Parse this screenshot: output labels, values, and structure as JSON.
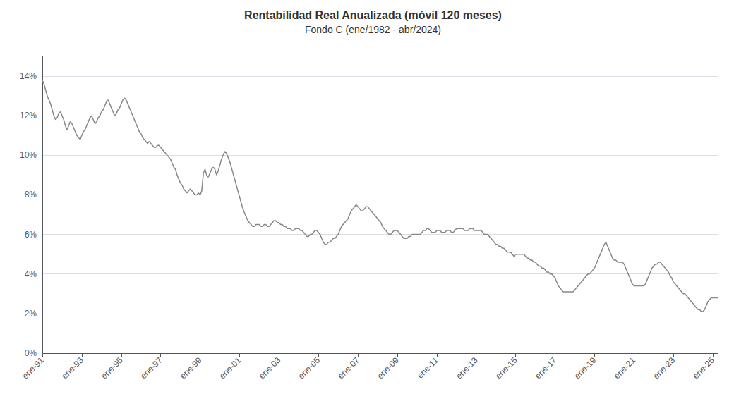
{
  "chart_data": {
    "type": "line",
    "title": "Rentabilidad Real Anualizada (móvil 120 meses)",
    "subtitle": "Fondo C (ene/1982 - abr/2024)",
    "color": "#888888",
    "grid": true,
    "xlim": [
      1991.0,
      2025.25
    ],
    "xticks": [
      {
        "value": 1991,
        "label": "ene-91"
      },
      {
        "value": 1993,
        "label": "ene-93"
      },
      {
        "value": 1995,
        "label": "ene-95"
      },
      {
        "value": 1997,
        "label": "ene-97"
      },
      {
        "value": 1999,
        "label": "ene-99"
      },
      {
        "value": 2001,
        "label": "ene-01"
      },
      {
        "value": 2003,
        "label": "ene-03"
      },
      {
        "value": 2005,
        "label": "ene-05"
      },
      {
        "value": 2007,
        "label": "ene-07"
      },
      {
        "value": 2009,
        "label": "ene-09"
      },
      {
        "value": 2011,
        "label": "ene-11"
      },
      {
        "value": 2013,
        "label": "ene-13"
      },
      {
        "value": 2015,
        "label": "ene-15"
      },
      {
        "value": 2017,
        "label": "ene-17"
      },
      {
        "value": 2019,
        "label": "ene-19"
      },
      {
        "value": 2021,
        "label": "ene-21"
      },
      {
        "value": 2023,
        "label": "ene-23"
      },
      {
        "value": 2025,
        "label": "ene-25"
      }
    ],
    "ylim": [
      0,
      0.15
    ],
    "yticks": [
      {
        "value": 0.0,
        "label": "0%"
      },
      {
        "value": 0.02,
        "label": "2%"
      },
      {
        "value": 0.04,
        "label": "4%"
      },
      {
        "value": 0.06,
        "label": "6%"
      },
      {
        "value": 0.08,
        "label": "8%"
      },
      {
        "value": 0.1,
        "label": "10%"
      },
      {
        "value": 0.12,
        "label": "12%"
      },
      {
        "value": 0.14,
        "label": "14%"
      }
    ],
    "x": [
      1991,
      1991.083333333333,
      1991.166666666667,
      1991.25,
      1991.333333333333,
      1991.416666666667,
      1991.5,
      1991.583333333333,
      1991.666666666667,
      1991.75,
      1991.833333333333,
      1991.916666666667,
      1992,
      1992.083333333333,
      1992.166666666667,
      1992.25,
      1992.333333333333,
      1992.416666666667,
      1992.5,
      1992.583333333333,
      1992.666666666667,
      1992.75,
      1992.833333333333,
      1992.916666666667,
      1993,
      1993.083333333333,
      1993.166666666667,
      1993.25,
      1993.333333333333,
      1993.416666666667,
      1993.5,
      1993.583333333333,
      1993.666666666667,
      1993.75,
      1993.833333333333,
      1993.916666666667,
      1994,
      1994.083333333333,
      1994.166666666667,
      1994.25,
      1994.333333333333,
      1994.416666666667,
      1994.5,
      1994.583333333333,
      1994.666666666667,
      1994.75,
      1994.833333333333,
      1994.916666666667,
      1995,
      1995.083333333333,
      1995.166666666667,
      1995.25,
      1995.333333333333,
      1995.416666666667,
      1995.5,
      1995.583333333333,
      1995.666666666667,
      1995.75,
      1995.833333333333,
      1995.916666666667,
      1996,
      1996.083333333333,
      1996.166666666667,
      1996.25,
      1996.333333333333,
      1996.416666666667,
      1996.5,
      1996.583333333333,
      1996.666666666667,
      1996.75,
      1996.833333333333,
      1996.916666666667,
      1997,
      1997.083333333333,
      1997.166666666667,
      1997.25,
      1997.333333333333,
      1997.416666666667,
      1997.5,
      1997.583333333333,
      1997.666666666667,
      1997.75,
      1997.833333333333,
      1997.916666666667,
      1998,
      1998.083333333333,
      1998.166666666667,
      1998.25,
      1998.333333333333,
      1998.416666666667,
      1998.5,
      1998.583333333333,
      1998.666666666667,
      1998.75,
      1998.833333333333,
      1998.916666666667,
      1999,
      1999.083333333333,
      1999.166666666667,
      1999.25,
      1999.333333333333,
      1999.416666666667,
      1999.5,
      1999.583333333333,
      1999.666666666667,
      1999.75,
      1999.833333333333,
      1999.916666666667,
      2000,
      2000.083333333333,
      2000.166666666667,
      2000.25,
      2000.333333333333,
      2000.416666666667,
      2000.5,
      2000.583333333333,
      2000.666666666667,
      2000.75,
      2000.833333333333,
      2000.916666666667,
      2001,
      2001.083333333333,
      2001.166666666667,
      2001.25,
      2001.333333333333,
      2001.416666666667,
      2001.5,
      2001.583333333333,
      2001.666666666667,
      2001.75,
      2001.833333333333,
      2001.916666666667,
      2002,
      2002.083333333333,
      2002.166666666667,
      2002.25,
      2002.333333333333,
      2002.416666666667,
      2002.5,
      2002.583333333333,
      2002.666666666667,
      2002.75,
      2002.833333333333,
      2002.916666666667,
      2003,
      2003.083333333333,
      2003.166666666667,
      2003.25,
      2003.333333333333,
      2003.416666666667,
      2003.5,
      2003.583333333333,
      2003.666666666667,
      2003.75,
      2003.833333333333,
      2003.916666666667,
      2004,
      2004.083333333333,
      2004.166666666667,
      2004.25,
      2004.333333333333,
      2004.416666666667,
      2004.5,
      2004.583333333333,
      2004.666666666667,
      2004.75,
      2004.833333333333,
      2004.916666666667,
      2005,
      2005.083333333333,
      2005.166666666667,
      2005.25,
      2005.333333333333,
      2005.416666666667,
      2005.5,
      2005.583333333333,
      2005.666666666667,
      2005.75,
      2005.833333333333,
      2005.916666666667,
      2006,
      2006.083333333333,
      2006.166666666667,
      2006.25,
      2006.333333333333,
      2006.416666666667,
      2006.5,
      2006.583333333333,
      2006.666666666667,
      2006.75,
      2006.833333333333,
      2006.916666666667,
      2007,
      2007.083333333333,
      2007.166666666667,
      2007.25,
      2007.333333333333,
      2007.416666666667,
      2007.5,
      2007.583333333333,
      2007.666666666667,
      2007.75,
      2007.833333333333,
      2007.916666666667,
      2008,
      2008.083333333333,
      2008.166666666667,
      2008.25,
      2008.333333333333,
      2008.416666666667,
      2008.5,
      2008.583333333333,
      2008.666666666667,
      2008.75,
      2008.833333333333,
      2008.916666666667,
      2009,
      2009.083333333333,
      2009.166666666667,
      2009.25,
      2009.333333333333,
      2009.416666666667,
      2009.5,
      2009.583333333333,
      2009.666666666667,
      2009.75,
      2009.833333333333,
      2009.916666666667,
      2010,
      2010.083333333333,
      2010.166666666667,
      2010.25,
      2010.333333333333,
      2010.416666666667,
      2010.5,
      2010.583333333333,
      2010.666666666667,
      2010.75,
      2010.833333333333,
      2010.916666666667,
      2011,
      2011.083333333333,
      2011.166666666667,
      2011.25,
      2011.333333333333,
      2011.416666666667,
      2011.5,
      2011.583333333333,
      2011.666666666667,
      2011.75,
      2011.833333333333,
      2011.916666666667,
      2012,
      2012.083333333333,
      2012.166666666667,
      2012.25,
      2012.333333333333,
      2012.416666666667,
      2012.5,
      2012.583333333333,
      2012.666666666667,
      2012.75,
      2012.833333333333,
      2012.916666666667,
      2013,
      2013.083333333333,
      2013.166666666667,
      2013.25,
      2013.333333333333,
      2013.416666666667,
      2013.5,
      2013.583333333333,
      2013.666666666667,
      2013.75,
      2013.833333333333,
      2013.916666666667,
      2014,
      2014.083333333333,
      2014.166666666667,
      2014.25,
      2014.333333333333,
      2014.416666666667,
      2014.5,
      2014.583333333333,
      2014.666666666667,
      2014.75,
      2014.833333333333,
      2014.916666666667,
      2015,
      2015.083333333333,
      2015.166666666667,
      2015.25,
      2015.333333333333,
      2015.416666666667,
      2015.5,
      2015.583333333333,
      2015.666666666667,
      2015.75,
      2015.833333333333,
      2015.916666666667,
      2016,
      2016.083333333333,
      2016.166666666667,
      2016.25,
      2016.333333333333,
      2016.416666666667,
      2016.5,
      2016.583333333333,
      2016.666666666667,
      2016.75,
      2016.833333333333,
      2016.916666666667,
      2017,
      2017.083333333333,
      2017.166666666667,
      2017.25,
      2017.333333333333,
      2017.416666666667,
      2017.5,
      2017.583333333333,
      2017.666666666667,
      2017.75,
      2017.833333333333,
      2017.916666666667,
      2018,
      2018.083333333333,
      2018.166666666667,
      2018.25,
      2018.333333333333,
      2018.416666666667,
      2018.5,
      2018.583333333333,
      2018.666666666667,
      2018.75,
      2018.833333333333,
      2018.916666666667,
      2019,
      2019.083333333333,
      2019.166666666667,
      2019.25,
      2019.333333333333,
      2019.416666666667,
      2019.5,
      2019.583333333333,
      2019.666666666667,
      2019.75,
      2019.833333333333,
      2019.916666666667,
      2020,
      2020.083333333333,
      2020.166666666667,
      2020.25,
      2020.333333333333,
      2020.416666666667,
      2020.5,
      2020.583333333333,
      2020.666666666667,
      2020.75,
      2020.833333333333,
      2020.916666666667,
      2021,
      2021.083333333333,
      2021.166666666667,
      2021.25,
      2021.333333333333,
      2021.416666666667,
      2021.5,
      2021.583333333333,
      2021.666666666667,
      2021.75,
      2021.833333333333,
      2021.916666666667,
      2022,
      2022.083333333333,
      2022.166666666667,
      2022.25,
      2022.333333333333,
      2022.416666666667,
      2022.5,
      2022.583333333333,
      2022.666666666667,
      2022.75,
      2022.833333333333,
      2022.916666666667,
      2023,
      2023.083333333333,
      2023.166666666667,
      2023.25,
      2023.333333333333,
      2023.416666666667,
      2023.5,
      2023.583333333333,
      2023.666666666667,
      2023.75,
      2023.833333333333,
      2023.916666666667,
      2024,
      2024.083333333333,
      2024.166666666667,
      2024.25,
      2024.333333333333,
      2024.416666666667,
      2024.5,
      2024.583333333333,
      2024.666666666667,
      2024.75,
      2024.833333333333,
      2024.916666666667,
      2025,
      2025.083333333333,
      2025.166666666667,
      2025.25
    ],
    "values": [
      0.138,
      0.136,
      0.133,
      0.13,
      0.128,
      0.126,
      0.123,
      0.12,
      0.118,
      0.119,
      0.121,
      0.122,
      0.12,
      0.118,
      0.115,
      0.113,
      0.115,
      0.117,
      0.116,
      0.114,
      0.112,
      0.11,
      0.109,
      0.108,
      0.11,
      0.112,
      0.113,
      0.115,
      0.117,
      0.119,
      0.12,
      0.118,
      0.116,
      0.117,
      0.119,
      0.12,
      0.122,
      0.123,
      0.125,
      0.127,
      0.128,
      0.126,
      0.124,
      0.122,
      0.12,
      0.121,
      0.123,
      0.124,
      0.126,
      0.128,
      0.129,
      0.128,
      0.126,
      0.124,
      0.122,
      0.12,
      0.118,
      0.116,
      0.114,
      0.112,
      0.111,
      0.109,
      0.108,
      0.107,
      0.106,
      0.107,
      0.106,
      0.105,
      0.104,
      0.104,
      0.105,
      0.105,
      0.104,
      0.103,
      0.102,
      0.101,
      0.1,
      0.099,
      0.098,
      0.096,
      0.094,
      0.093,
      0.09,
      0.088,
      0.086,
      0.085,
      0.083,
      0.082,
      0.081,
      0.082,
      0.083,
      0.082,
      0.081,
      0.08,
      0.08,
      0.081,
      0.08,
      0.082,
      0.091,
      0.093,
      0.09,
      0.089,
      0.091,
      0.093,
      0.094,
      0.093,
      0.09,
      0.092,
      0.095,
      0.098,
      0.1,
      0.102,
      0.101,
      0.099,
      0.097,
      0.094,
      0.091,
      0.088,
      0.085,
      0.082,
      0.079,
      0.076,
      0.073,
      0.071,
      0.069,
      0.067,
      0.066,
      0.065,
      0.064,
      0.064,
      0.065,
      0.065,
      0.065,
      0.064,
      0.064,
      0.065,
      0.065,
      0.064,
      0.064,
      0.065,
      0.066,
      0.067,
      0.067,
      0.066,
      0.066,
      0.065,
      0.065,
      0.064,
      0.064,
      0.063,
      0.063,
      0.063,
      0.062,
      0.062,
      0.063,
      0.063,
      0.063,
      0.062,
      0.062,
      0.061,
      0.06,
      0.059,
      0.059,
      0.06,
      0.06,
      0.061,
      0.062,
      0.062,
      0.061,
      0.06,
      0.058,
      0.056,
      0.055,
      0.055,
      0.056,
      0.056,
      0.057,
      0.058,
      0.058,
      0.059,
      0.06,
      0.062,
      0.064,
      0.065,
      0.066,
      0.067,
      0.068,
      0.07,
      0.072,
      0.073,
      0.074,
      0.075,
      0.074,
      0.073,
      0.072,
      0.072,
      0.073,
      0.074,
      0.074,
      0.073,
      0.072,
      0.071,
      0.07,
      0.069,
      0.068,
      0.067,
      0.066,
      0.064,
      0.063,
      0.062,
      0.061,
      0.06,
      0.06,
      0.061,
      0.062,
      0.062,
      0.062,
      0.061,
      0.06,
      0.059,
      0.058,
      0.058,
      0.058,
      0.059,
      0.059,
      0.06,
      0.06,
      0.06,
      0.06,
      0.06,
      0.06,
      0.061,
      0.062,
      0.062,
      0.063,
      0.063,
      0.062,
      0.061,
      0.061,
      0.061,
      0.062,
      0.062,
      0.062,
      0.061,
      0.061,
      0.061,
      0.062,
      0.062,
      0.062,
      0.061,
      0.061,
      0.062,
      0.063,
      0.063,
      0.063,
      0.063,
      0.063,
      0.062,
      0.062,
      0.062,
      0.063,
      0.063,
      0.063,
      0.062,
      0.062,
      0.062,
      0.062,
      0.062,
      0.061,
      0.06,
      0.06,
      0.06,
      0.059,
      0.058,
      0.057,
      0.056,
      0.055,
      0.055,
      0.054,
      0.054,
      0.053,
      0.053,
      0.052,
      0.051,
      0.051,
      0.051,
      0.05,
      0.049,
      0.05,
      0.05,
      0.05,
      0.05,
      0.05,
      0.05,
      0.049,
      0.048,
      0.048,
      0.047,
      0.047,
      0.046,
      0.046,
      0.045,
      0.044,
      0.044,
      0.043,
      0.043,
      0.042,
      0.041,
      0.041,
      0.04,
      0.04,
      0.039,
      0.038,
      0.036,
      0.034,
      0.033,
      0.032,
      0.031,
      0.031,
      0.031,
      0.031,
      0.031,
      0.031,
      0.031,
      0.032,
      0.033,
      0.034,
      0.035,
      0.036,
      0.037,
      0.038,
      0.039,
      0.04,
      0.04,
      0.041,
      0.042,
      0.043,
      0.045,
      0.047,
      0.049,
      0.051,
      0.053,
      0.055,
      0.056,
      0.054,
      0.052,
      0.05,
      0.048,
      0.047,
      0.047,
      0.046,
      0.046,
      0.046,
      0.046,
      0.045,
      0.043,
      0.041,
      0.039,
      0.037,
      0.035,
      0.034,
      0.034,
      0.034,
      0.034,
      0.034,
      0.034,
      0.034,
      0.035,
      0.037,
      0.039,
      0.041,
      0.043,
      0.044,
      0.045,
      0.045,
      0.046,
      0.046,
      0.045,
      0.044,
      0.043,
      0.042,
      0.041,
      0.039,
      0.038,
      0.036,
      0.035,
      0.034,
      0.033,
      0.032,
      0.031,
      0.03,
      0.03,
      0.029,
      0.028,
      0.027,
      0.026,
      0.025,
      0.024,
      0.023,
      0.022,
      0.022,
      0.021,
      0.021,
      0.022,
      0.024,
      0.026,
      0.027,
      0.028,
      0.028,
      0.028,
      0.028,
      0.028
    ]
  }
}
